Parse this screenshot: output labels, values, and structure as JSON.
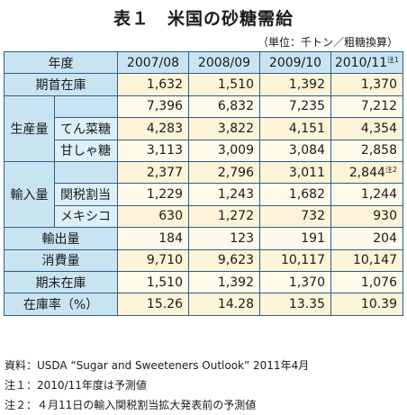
{
  "title": "表１　米国の砂糖需給",
  "unit": "（単位：千トン／粗糖換算）",
  "header": {
    "corner": "年度",
    "years": [
      "2007/08",
      "2008/09",
      "2009/10",
      "2010/11"
    ],
    "year_note": "注1"
  },
  "rows": {
    "beginning_stock": {
      "label": "期首在庫",
      "values": [
        "1,632",
        "1,510",
        "1,392",
        "1,370"
      ]
    },
    "production": {
      "label": "生産量",
      "values": [
        "7,396",
        "6,832",
        "7,235",
        "7,212"
      ]
    },
    "beet": {
      "label": "てん菜糖",
      "values": [
        "4,283",
        "3,822",
        "4,151",
        "4,354"
      ]
    },
    "cane": {
      "label": "甘しゃ糖",
      "values": [
        "3,113",
        "3,009",
        "3,084",
        "2,858"
      ]
    },
    "imports": {
      "label": "輸入量",
      "values": [
        "2,377",
        "2,796",
        "3,011",
        "2,844"
      ],
      "last_note": "注2"
    },
    "tariff_quota": {
      "label": "関税割当",
      "values": [
        "1,229",
        "1,243",
        "1,682",
        "1,244"
      ]
    },
    "mexico": {
      "label": "メキシコ",
      "values": [
        "630",
        "1,272",
        "732",
        "930"
      ]
    },
    "exports": {
      "label": "輸出量",
      "values": [
        "184",
        "123",
        "191",
        "204"
      ]
    },
    "consumption": {
      "label": "消費量",
      "values": [
        "9,710",
        "9,623",
        "10,117",
        "10,147"
      ]
    },
    "ending_stock": {
      "label": "期末在庫",
      "values": [
        "1,510",
        "1,392",
        "1,370",
        "1,076"
      ]
    },
    "stock_ratio": {
      "label": "在庫率（%）",
      "values": [
        "15.26",
        "14.28",
        "13.35",
        "10.39"
      ]
    }
  },
  "notes": [
    "資料：USDA “Sugar and Sweeteners Outlook” 2011年4月",
    "注１：2010/11年度は予測値",
    "注２：４月11日の輸入関税割当拡大発表前の予測値"
  ],
  "colors": {
    "border": "#2e5d8c",
    "header_bg": "#c9e4f1",
    "sub_bg": "#ddeff7",
    "value_bg": "#fdf3d6"
  }
}
